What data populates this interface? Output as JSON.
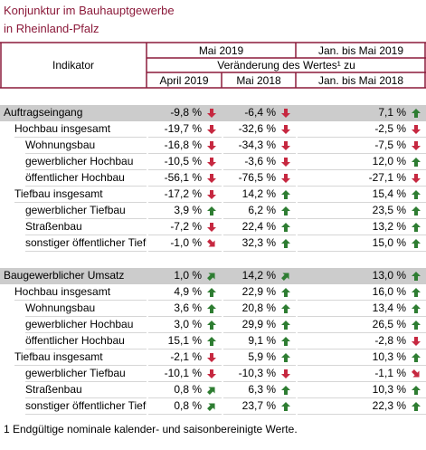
{
  "header": {
    "title_line1": "Konjunktur im Bauhauptgewerbe",
    "title_line2": "in Rheinland-Pfalz"
  },
  "table": {
    "columns": {
      "indicator": "Indikator",
      "period_a": "Mai 2019",
      "period_b": "Jan. bis Mai 2019",
      "change": "Veränderung des Wertes¹ zu",
      "sub_a": "April 2019",
      "sub_b": "Mai 2018",
      "sub_c": "Jan. bis Mai 2018"
    },
    "sections": [
      {
        "rows": [
          [
            "Auftragseingang",
            "-9,8 %",
            "-6,4 %",
            "7,1 %"
          ],
          [
            "Hochbau insgesamt",
            "-19,7 %",
            "-32,6 %",
            "-2,5 %"
          ],
          [
            "Wohnungsbau",
            "-16,8 %",
            "-34,3 %",
            "-7,5 %"
          ],
          [
            "gewerblicher Hochbau",
            "-10,5 %",
            "-3,6 %",
            "12,0 %"
          ],
          [
            "öffentlicher Hochbau",
            "-56,1 %",
            "-76,5 %",
            "-27,1 %"
          ],
          [
            "Tiefbau insgesamt",
            "-17,2 %",
            "14,2 %",
            "15,4 %"
          ],
          [
            "gewerblicher Tiefbau",
            "3,9 %",
            "6,2 %",
            "23,5 %"
          ],
          [
            "Straßenbau",
            "-7,2 %",
            "22,4 %",
            "13,2 %"
          ],
          [
            "sonstiger öffentlicher Tiefb",
            "-1,0 %",
            "32,3 %",
            "15,0 %"
          ]
        ]
      },
      {
        "rows": [
          [
            "Baugewerblicher Umsatz",
            "1,0 %",
            "14,2 %",
            "13,0 %"
          ],
          [
            "Hochbau insgesamt",
            "4,9 %",
            "22,9 %",
            "16,0 %"
          ],
          [
            "Wohnungsbau",
            "3,6 %",
            "20,8 %",
            "13,4 %"
          ],
          [
            "gewerblicher Hochbau",
            "3,0 %",
            "29,9 %",
            "26,5 %"
          ],
          [
            "öffentlicher Hochbau",
            "15,1 %",
            "9,1 %",
            "-2,8 %"
          ],
          [
            "Tiefbau insgesamt",
            "-2,1 %",
            "5,9 %",
            "10,3 %"
          ],
          [
            "gewerblicher Tiefbau",
            "-10,1 %",
            "-10,3 %",
            "-1,1 %"
          ],
          [
            "Straßenbau",
            "0,8 %",
            "6,3 %",
            "10,3 %"
          ],
          [
            "sonstiger öffentlicher Tiefb",
            "0,8 %",
            "23,7 %",
            "22,3 %"
          ]
        ]
      }
    ]
  },
  "footnote": "1 Endgültige nominale kalender- und saisonbereinigte Werte."
}
